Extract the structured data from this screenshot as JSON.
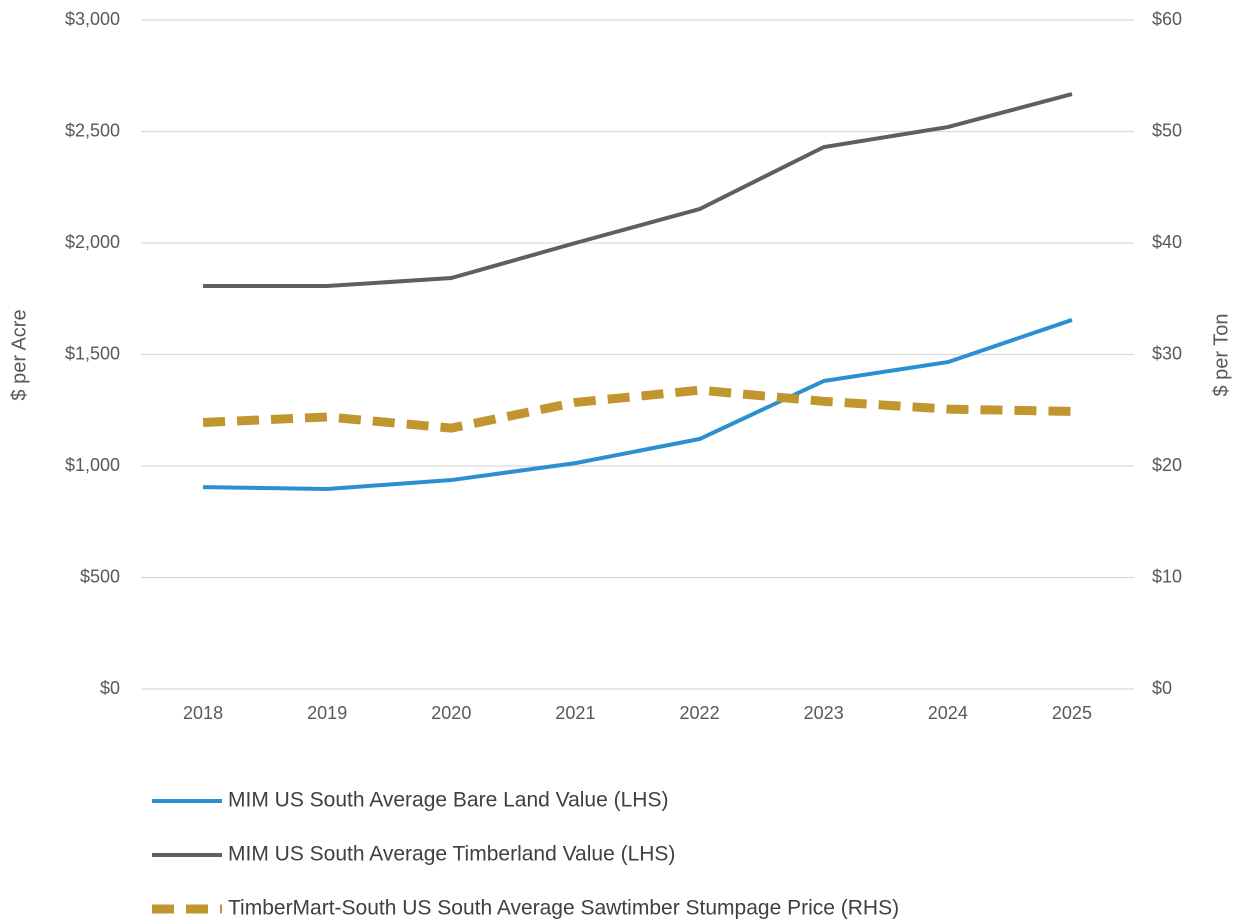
{
  "chart_data": {
    "type": "line",
    "y_label": "$ per Acre",
    "y2_label": "$ per Ton",
    "categories": [
      "2018",
      "2019",
      "2020",
      "2021",
      "2022",
      "2023",
      "2024",
      "2025"
    ],
    "series": [
      {
        "name": "MIM US South Average Bare Land Value (LHS)",
        "color": "#2b8fd0",
        "dashed": false,
        "values": [
          905,
          897,
          937,
          1013,
          1121,
          1381,
          1466,
          1655
        ]
      },
      {
        "name": "MIM US South Average Timberland Value (LHS)",
        "color": "#5f5f5f",
        "dashed": false,
        "values": [
          1807,
          1807,
          1843,
          2000,
          2152,
          2430,
          2520,
          2668
        ]
      },
      {
        "name": "TimberMart-South US South Average Sawtimber Stumpage Price (RHS)",
        "color": "#c2962f",
        "dashed": true,
        "axis": "y2",
        "values": [
          23.9,
          24.4,
          23.4,
          25.7,
          26.8,
          25.8,
          25.1,
          24.9
        ]
      }
    ],
    "ylim": [
      0,
      3000
    ],
    "yticks": [
      {
        "value": 0,
        "label": "$0"
      },
      {
        "value": 500,
        "label": "$500"
      },
      {
        "value": 1000,
        "label": "$1,000"
      },
      {
        "value": 1500,
        "label": "$1,500"
      },
      {
        "value": 2000,
        "label": "$2,000"
      },
      {
        "value": 2500,
        "label": "$2,500"
      },
      {
        "value": 3000,
        "label": "$3,000"
      }
    ],
    "y2lim": [
      0,
      60
    ],
    "y2ticks": [
      {
        "value": 0,
        "label": "$0"
      },
      {
        "value": 10,
        "label": "$10"
      },
      {
        "value": 20,
        "label": "$20"
      },
      {
        "value": 30,
        "label": "$30"
      },
      {
        "value": 40,
        "label": "$40"
      },
      {
        "value": 50,
        "label": "$50"
      },
      {
        "value": 60,
        "label": "$60"
      }
    ],
    "grid": true,
    "legend": "bottom"
  }
}
